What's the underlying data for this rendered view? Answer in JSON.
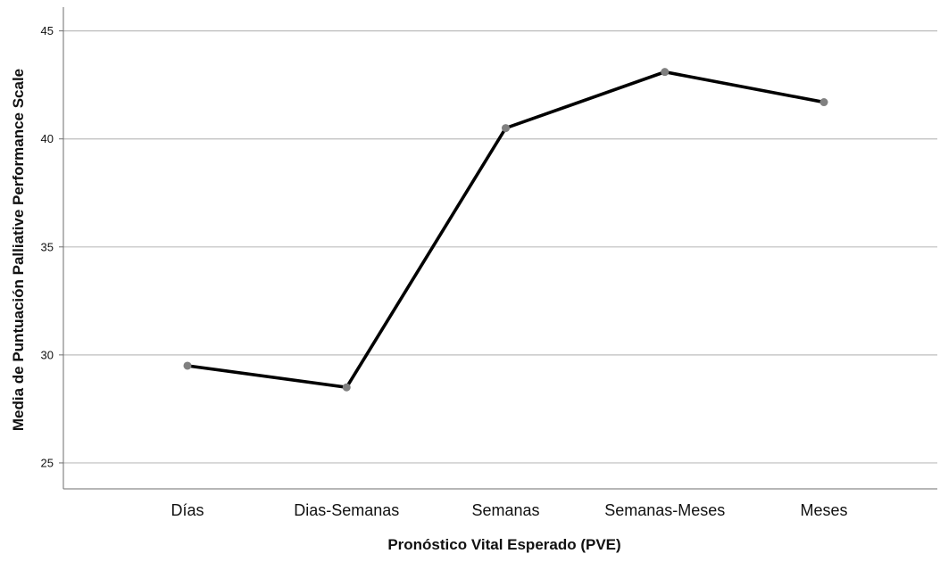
{
  "chart_data": {
    "type": "line",
    "title": "",
    "xlabel": "Pronóstico Vital Esperado (PVE)",
    "ylabel": "Media de Puntuación Palliative Performance Scale",
    "categories": [
      "Días",
      "Dias-Semanas",
      "Semanas",
      "Semanas-Meses",
      "Meses"
    ],
    "series": [
      {
        "values": [
          29.5,
          28.5,
          40.5,
          43.1,
          41.7
        ]
      }
    ],
    "ylim": [
      23.8,
      46.1
    ],
    "yticks": [
      25,
      30,
      35,
      40,
      45
    ],
    "grid": true,
    "legend": "none",
    "colors": {
      "line": "#000000",
      "marker": "#808080",
      "grid": "#bdbdbd",
      "axis": "#6e6e6e"
    }
  }
}
